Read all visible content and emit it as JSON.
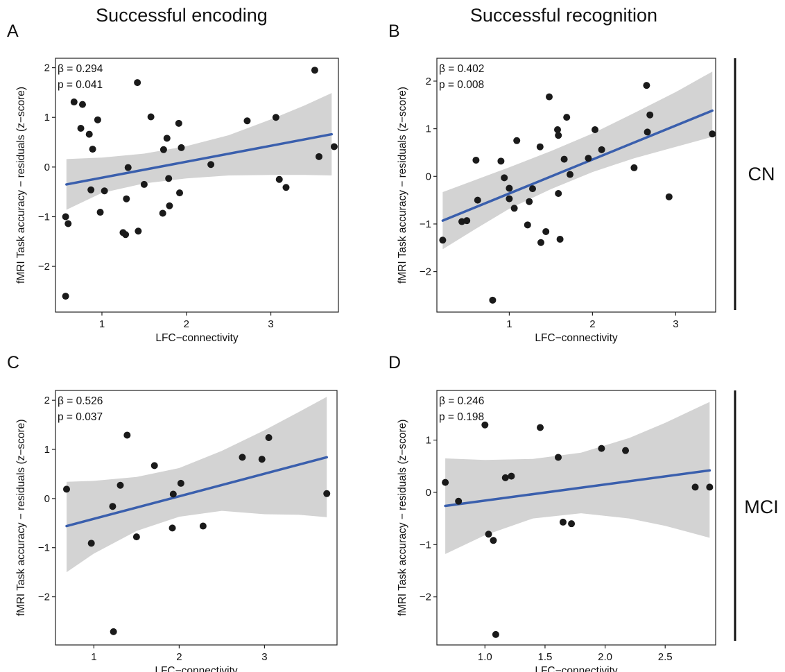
{
  "figure": {
    "column_titles": [
      "Successful encoding",
      "Successful recognition"
    ],
    "group_labels": [
      "CN",
      "MCI"
    ]
  },
  "colors": {
    "fit_line": "#3a5fad",
    "ci_band": "#d3d3d3",
    "points": "#1a1a1a",
    "frame": "#222222"
  },
  "chart_data": [
    {
      "panel": "A",
      "type": "scatter",
      "column_title": "Successful encoding",
      "group": "CN",
      "xlabel": "LFC−connectivity",
      "ylabel": "fMRI Task accuracy − residuals (z−score)",
      "stats": [
        "β = 0.294",
        "p = 0.041"
      ],
      "xlim": [
        0.45,
        3.8
      ],
      "ylim": [
        -2.92,
        2.19
      ],
      "xticks": [
        1,
        2,
        3
      ],
      "xtick_labels": [
        "1",
        "2",
        "3"
      ],
      "yticks": [
        -2,
        -1,
        0,
        1,
        2
      ],
      "ytick_labels": [
        "−2",
        "−1",
        "0",
        "1",
        "2"
      ],
      "fit": {
        "x": [
          0.58,
          3.72
        ],
        "y": [
          -0.35,
          0.66
        ]
      },
      "ci": {
        "x": [
          0.58,
          1.0,
          1.5,
          2.0,
          2.5,
          3.0,
          3.4,
          3.72
        ],
        "upper": [
          0.16,
          0.19,
          0.27,
          0.42,
          0.64,
          0.96,
          1.24,
          1.49
        ],
        "lower": [
          -0.86,
          -0.52,
          -0.33,
          -0.23,
          -0.17,
          -0.16,
          -0.16,
          -0.17
        ]
      },
      "points": [
        {
          "x": 0.57,
          "y": -1.0
        },
        {
          "x": 0.6,
          "y": -1.14
        },
        {
          "x": 0.57,
          "y": -2.6
        },
        {
          "x": 0.67,
          "y": 1.31
        },
        {
          "x": 0.75,
          "y": 0.78
        },
        {
          "x": 0.77,
          "y": 1.26
        },
        {
          "x": 0.85,
          "y": 0.66
        },
        {
          "x": 0.89,
          "y": 0.36
        },
        {
          "x": 0.87,
          "y": -0.46
        },
        {
          "x": 0.95,
          "y": 0.95
        },
        {
          "x": 0.98,
          "y": -0.91
        },
        {
          "x": 1.03,
          "y": -0.48
        },
        {
          "x": 1.25,
          "y": -1.32
        },
        {
          "x": 1.28,
          "y": -1.36
        },
        {
          "x": 1.29,
          "y": -0.64
        },
        {
          "x": 1.31,
          "y": -0.01
        },
        {
          "x": 1.42,
          "y": 1.7
        },
        {
          "x": 1.43,
          "y": -1.29
        },
        {
          "x": 1.5,
          "y": -0.35
        },
        {
          "x": 1.58,
          "y": 1.01
        },
        {
          "x": 1.72,
          "y": -0.93
        },
        {
          "x": 1.73,
          "y": 0.35
        },
        {
          "x": 1.77,
          "y": 0.58
        },
        {
          "x": 1.79,
          "y": -0.23
        },
        {
          "x": 1.8,
          "y": -0.78
        },
        {
          "x": 1.91,
          "y": 0.88
        },
        {
          "x": 1.92,
          "y": -0.52
        },
        {
          "x": 1.94,
          "y": 0.39
        },
        {
          "x": 2.29,
          "y": 0.05
        },
        {
          "x": 2.72,
          "y": 0.93
        },
        {
          "x": 3.06,
          "y": 1.0
        },
        {
          "x": 3.1,
          "y": -0.25
        },
        {
          "x": 3.18,
          "y": -0.41
        },
        {
          "x": 3.52,
          "y": 1.95
        },
        {
          "x": 3.57,
          "y": 0.21
        },
        {
          "x": 3.75,
          "y": 0.41
        }
      ]
    },
    {
      "panel": "B",
      "type": "scatter",
      "column_title": "Successful recognition",
      "group": "CN",
      "xlabel": "LFC−connectivity",
      "ylabel": "fMRI Task accuracy − residuals (z−score)",
      "stats": [
        "β = 0.402",
        "p = 0.008"
      ],
      "xlim": [
        0.13,
        3.48
      ],
      "ylim": [
        -2.85,
        2.48
      ],
      "xticks": [
        1,
        2,
        3
      ],
      "xtick_labels": [
        "1",
        "2",
        "3"
      ],
      "yticks": [
        -2,
        -1,
        0,
        1,
        2
      ],
      "ytick_labels": [
        "−2",
        "−1",
        "0",
        "1",
        "2"
      ],
      "fit": {
        "x": [
          0.2,
          3.44
        ],
        "y": [
          -0.93,
          1.38
        ]
      },
      "ci": {
        "x": [
          0.2,
          0.6,
          1.0,
          1.5,
          2.0,
          2.5,
          3.0,
          3.44
        ],
        "upper": [
          -0.33,
          -0.07,
          0.19,
          0.53,
          0.9,
          1.33,
          1.77,
          2.2
        ],
        "lower": [
          -1.53,
          -1.1,
          -0.68,
          -0.27,
          0.09,
          0.38,
          0.62,
          0.83
        ]
      },
      "points": [
        {
          "x": 0.2,
          "y": -1.34
        },
        {
          "x": 0.43,
          "y": -0.95
        },
        {
          "x": 0.49,
          "y": -0.93
        },
        {
          "x": 0.6,
          "y": 0.34
        },
        {
          "x": 0.62,
          "y": -0.5
        },
        {
          "x": 0.8,
          "y": -2.6
        },
        {
          "x": 0.9,
          "y": 0.32
        },
        {
          "x": 0.94,
          "y": -0.03
        },
        {
          "x": 1.0,
          "y": -0.25
        },
        {
          "x": 1.0,
          "y": -0.47
        },
        {
          "x": 1.06,
          "y": -0.67
        },
        {
          "x": 1.09,
          "y": 0.75
        },
        {
          "x": 1.22,
          "y": -1.02
        },
        {
          "x": 1.24,
          "y": -0.53
        },
        {
          "x": 1.28,
          "y": -0.26
        },
        {
          "x": 1.37,
          "y": 0.62
        },
        {
          "x": 1.38,
          "y": -1.39
        },
        {
          "x": 1.44,
          "y": -1.16
        },
        {
          "x": 1.48,
          "y": 1.67
        },
        {
          "x": 1.58,
          "y": 0.98
        },
        {
          "x": 1.59,
          "y": 0.86
        },
        {
          "x": 1.59,
          "y": -0.36
        },
        {
          "x": 1.61,
          "y": -1.32
        },
        {
          "x": 1.66,
          "y": 0.36
        },
        {
          "x": 1.69,
          "y": 1.24
        },
        {
          "x": 1.73,
          "y": 0.04
        },
        {
          "x": 1.95,
          "y": 0.38
        },
        {
          "x": 2.03,
          "y": 0.98
        },
        {
          "x": 2.11,
          "y": 0.56
        },
        {
          "x": 2.5,
          "y": 0.18
        },
        {
          "x": 2.65,
          "y": 1.91
        },
        {
          "x": 2.66,
          "y": 0.93
        },
        {
          "x": 2.69,
          "y": 1.29
        },
        {
          "x": 2.92,
          "y": -0.43
        },
        {
          "x": 3.44,
          "y": 0.89
        }
      ]
    },
    {
      "panel": "C",
      "type": "scatter",
      "column_title": "Successful encoding",
      "group": "MCI",
      "xlabel": "LFC−connectivity",
      "ylabel": "fMRI Task accuracy − residuals (z−score)",
      "stats": [
        "β = 0.526",
        "p = 0.037"
      ],
      "xlim": [
        0.55,
        3.85
      ],
      "ylim": [
        -2.98,
        2.2
      ],
      "xticks": [
        1,
        2,
        3
      ],
      "xtick_labels": [
        "1",
        "2",
        "3"
      ],
      "yticks": [
        -2,
        -1,
        0,
        1,
        2
      ],
      "ytick_labels": [
        "−2",
        "−1",
        "0",
        "1",
        "2"
      ],
      "fit": {
        "x": [
          0.68,
          3.73
        ],
        "y": [
          -0.56,
          0.84
        ]
      },
      "ci": {
        "x": [
          0.68,
          1.0,
          1.5,
          2.0,
          2.5,
          3.0,
          3.4,
          3.73
        ],
        "upper": [
          0.34,
          0.36,
          0.44,
          0.62,
          0.97,
          1.39,
          1.76,
          2.07
        ],
        "lower": [
          -1.5,
          -1.12,
          -0.66,
          -0.37,
          -0.25,
          -0.32,
          -0.33,
          -0.38
        ]
      },
      "points": [
        {
          "x": 0.68,
          "y": 0.19
        },
        {
          "x": 0.97,
          "y": -0.91
        },
        {
          "x": 1.22,
          "y": -0.16
        },
        {
          "x": 1.23,
          "y": -2.71
        },
        {
          "x": 1.31,
          "y": 0.27
        },
        {
          "x": 1.39,
          "y": 1.29
        },
        {
          "x": 1.5,
          "y": -0.78
        },
        {
          "x": 1.71,
          "y": 0.67
        },
        {
          "x": 1.92,
          "y": -0.6
        },
        {
          "x": 1.93,
          "y": 0.09
        },
        {
          "x": 2.02,
          "y": 0.31
        },
        {
          "x": 2.28,
          "y": -0.56
        },
        {
          "x": 2.74,
          "y": 0.84
        },
        {
          "x": 2.97,
          "y": 0.8
        },
        {
          "x": 3.05,
          "y": 1.24
        },
        {
          "x": 3.73,
          "y": 0.1
        }
      ]
    },
    {
      "panel": "D",
      "type": "scatter",
      "column_title": "Successful recognition",
      "group": "MCI",
      "xlabel": "LFC−connectivity",
      "ylabel": "fMRI Task accuracy − residuals (z−score)",
      "stats": [
        "β = 0.246",
        "p = 0.198"
      ],
      "xlim": [
        0.6,
        2.92
      ],
      "ylim": [
        -2.92,
        1.95
      ],
      "xticks": [
        1.0,
        1.5,
        2.0,
        2.5
      ],
      "xtick_labels": [
        "1.0",
        "1.5",
        "2.0",
        "2.5"
      ],
      "yticks": [
        -2,
        -1,
        0,
        1
      ],
      "ytick_labels": [
        "−2",
        "−1",
        "0",
        "1"
      ],
      "fit": {
        "x": [
          0.67,
          2.87
        ],
        "y": [
          -0.26,
          0.42
        ]
      },
      "ci": {
        "x": [
          0.67,
          1.0,
          1.4,
          1.8,
          2.2,
          2.5,
          2.87
        ],
        "upper": [
          0.65,
          0.62,
          0.64,
          0.76,
          1.04,
          1.33,
          1.73
        ],
        "lower": [
          -1.18,
          -0.82,
          -0.5,
          -0.4,
          -0.5,
          -0.64,
          -0.87
        ]
      },
      "points": [
        {
          "x": 0.67,
          "y": 0.19
        },
        {
          "x": 0.78,
          "y": -0.17
        },
        {
          "x": 1.0,
          "y": 1.29
        },
        {
          "x": 1.03,
          "y": -0.8
        },
        {
          "x": 1.07,
          "y": -0.92
        },
        {
          "x": 1.09,
          "y": -2.72
        },
        {
          "x": 1.17,
          "y": 0.28
        },
        {
          "x": 1.22,
          "y": 0.31
        },
        {
          "x": 1.46,
          "y": 1.24
        },
        {
          "x": 1.61,
          "y": 0.67
        },
        {
          "x": 1.65,
          "y": -0.57
        },
        {
          "x": 1.72,
          "y": -0.6
        },
        {
          "x": 1.97,
          "y": 0.84
        },
        {
          "x": 2.17,
          "y": 0.8
        },
        {
          "x": 2.75,
          "y": 0.1
        },
        {
          "x": 2.87,
          "y": 0.1
        }
      ]
    }
  ]
}
